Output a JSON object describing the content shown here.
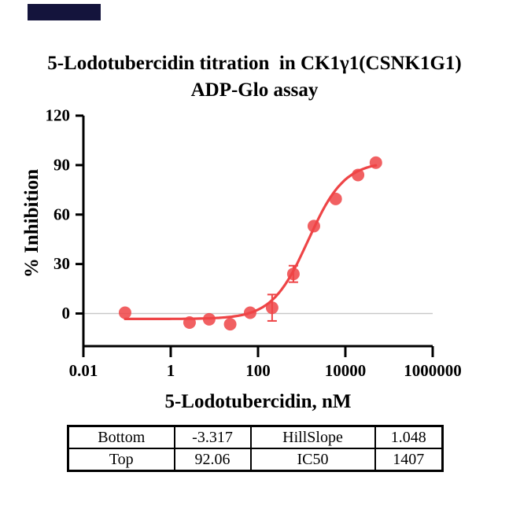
{
  "title": {
    "line1": "5-Lodotubercidin titration  in CK1γ1(CSNK1G1)",
    "line2": "ADP-Glo assay"
  },
  "corner_mark": {
    "color": "#14143c"
  },
  "chart_data": {
    "type": "scatter",
    "title": "5-Lodotubercidin titration in CK1γ1(CSNK1G1) ADP-Glo assay",
    "xlabel": "5-Lodotubercidin, nM",
    "ylabel": "% Inhibition",
    "x_scale": "log10",
    "xlim_log": [
      -2,
      6
    ],
    "ylim": [
      -20,
      120
    ],
    "grid": "off",
    "legend": "none",
    "baseline_y": 0,
    "x_ticks": [
      {
        "value": 0.01,
        "label": "0.01"
      },
      {
        "value": 1,
        "label": "1"
      },
      {
        "value": 100,
        "label": "100"
      },
      {
        "value": 10000,
        "label": "10000"
      },
      {
        "value": 1000000,
        "label": "1000000"
      }
    ],
    "y_ticks": [
      {
        "value": 0,
        "label": "0"
      },
      {
        "value": 30,
        "label": "30"
      },
      {
        "value": 60,
        "label": "60"
      },
      {
        "value": 90,
        "label": "90"
      },
      {
        "value": 120,
        "label": "120"
      }
    ],
    "series": [
      {
        "name": "5-Lodotubercidin",
        "color": "#ee4446",
        "marker": "circle",
        "points": [
          {
            "x": 0.09,
            "y": 0.5,
            "err": 0
          },
          {
            "x": 2.7,
            "y": -5.5,
            "err": 0
          },
          {
            "x": 7.6,
            "y": -3.5,
            "err": 0
          },
          {
            "x": 23,
            "y": -6.5,
            "err": 0
          },
          {
            "x": 66,
            "y": 0.5,
            "err": 0
          },
          {
            "x": 210,
            "y": 3.5,
            "err": 8
          },
          {
            "x": 645,
            "y": 24,
            "err": 5
          },
          {
            "x": 1900,
            "y": 53,
            "err": 0
          },
          {
            "x": 6000,
            "y": 69.5,
            "err": 0
          },
          {
            "x": 19500,
            "y": 84,
            "err": 0
          },
          {
            "x": 50000,
            "y": 91.5,
            "err": 0
          }
        ]
      }
    ],
    "fit": {
      "model": "4PL",
      "bottom": -3.317,
      "top": 92.06,
      "hillslope": 1.048,
      "ic50": 1407,
      "x_range": [
        0.09,
        50000
      ]
    },
    "colors": {
      "baseline": "#c9c9c9",
      "axis": "#000000"
    }
  },
  "table": {
    "rows": [
      [
        "Bottom",
        "-3.317",
        "HillSlope",
        "1.048"
      ],
      [
        "Top",
        "92.06",
        "IC50",
        "1407"
      ]
    ]
  }
}
